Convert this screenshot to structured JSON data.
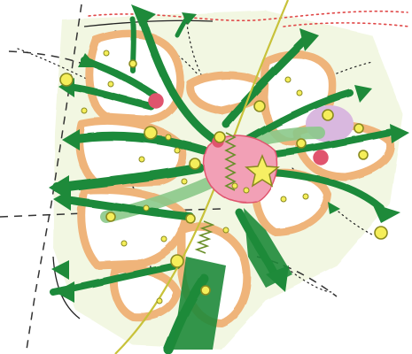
{
  "diagram": {
    "kind": "hand-drawn urban planning concept sketch",
    "palette": {
      "paper": "#ffffff",
      "site_tint": "#e8f2cc",
      "block_outline": "#efb47a",
      "block_fill": "#ffffff",
      "green_corridor": "#1e8a3a",
      "green_light": "#8bc98a",
      "center_pink": "#f2a0b6",
      "node_red": "#e0546e",
      "node_yellow": "#f5ee5a",
      "node_outline": "#8a8a20",
      "star": "#f6ef63",
      "purple_zone": "#d9b8df",
      "boundary_red": "#e04848",
      "dashed": "#333333",
      "ink": "#222222",
      "road_yellow": "#c8c23a",
      "zigzag": "#6a8f2a"
    },
    "icons": [
      "star-icon",
      "arrow-head-icon",
      "node-circle-icon"
    ]
  }
}
